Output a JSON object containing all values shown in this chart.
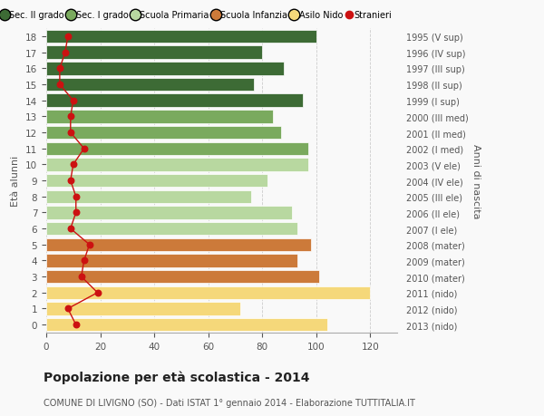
{
  "ages": [
    18,
    17,
    16,
    15,
    14,
    13,
    12,
    11,
    10,
    9,
    8,
    7,
    6,
    5,
    4,
    3,
    2,
    1,
    0
  ],
  "bar_values": [
    100,
    80,
    88,
    77,
    95,
    84,
    87,
    97,
    97,
    82,
    76,
    91,
    93,
    98,
    93,
    101,
    120,
    72,
    104
  ],
  "right_labels": [
    "1995 (V sup)",
    "1996 (IV sup)",
    "1997 (III sup)",
    "1998 (II sup)",
    "1999 (I sup)",
    "2000 (III med)",
    "2001 (II med)",
    "2002 (I med)",
    "2003 (V ele)",
    "2004 (IV ele)",
    "2005 (III ele)",
    "2006 (II ele)",
    "2007 (I ele)",
    "2008 (mater)",
    "2009 (mater)",
    "2010 (mater)",
    "2011 (nido)",
    "2012 (nido)",
    "2013 (nido)"
  ],
  "stranieri_values": [
    8,
    7,
    5,
    5,
    10,
    9,
    9,
    14,
    10,
    9,
    11,
    11,
    9,
    16,
    14,
    13,
    19,
    8,
    11
  ],
  "bar_colors": [
    "#3d6b35",
    "#3d6b35",
    "#3d6b35",
    "#3d6b35",
    "#3d6b35",
    "#7aaa5e",
    "#7aaa5e",
    "#7aaa5e",
    "#b8d8a0",
    "#b8d8a0",
    "#b8d8a0",
    "#b8d8a0",
    "#b8d8a0",
    "#cc7a3a",
    "#cc7a3a",
    "#cc7a3a",
    "#f5d87a",
    "#f5d87a",
    "#f5d87a"
  ],
  "legend_labels": [
    "Sec. II grado",
    "Sec. I grado",
    "Scuola Primaria",
    "Scuola Infanzia",
    "Asilo Nido",
    "Stranieri"
  ],
  "legend_colors": [
    "#3d6b35",
    "#7aaa5e",
    "#b8d8a0",
    "#cc7a3a",
    "#f5d87a",
    "#cc1111"
  ],
  "ylabel": "Età alunni",
  "right_ylabel": "Anni di nascita",
  "title": "Popolazione per età scolastica - 2014",
  "subtitle": "COMUNE DI LIVIGNO (SO) - Dati ISTAT 1° gennaio 2014 - Elaborazione TUTTITALIA.IT",
  "xlim": [
    0,
    130
  ],
  "xticks": [
    0,
    20,
    40,
    60,
    80,
    100,
    120
  ],
  "bg_color": "#f9f9f9",
  "grid_color": "#cccccc",
  "stranieri_color": "#cc1111"
}
